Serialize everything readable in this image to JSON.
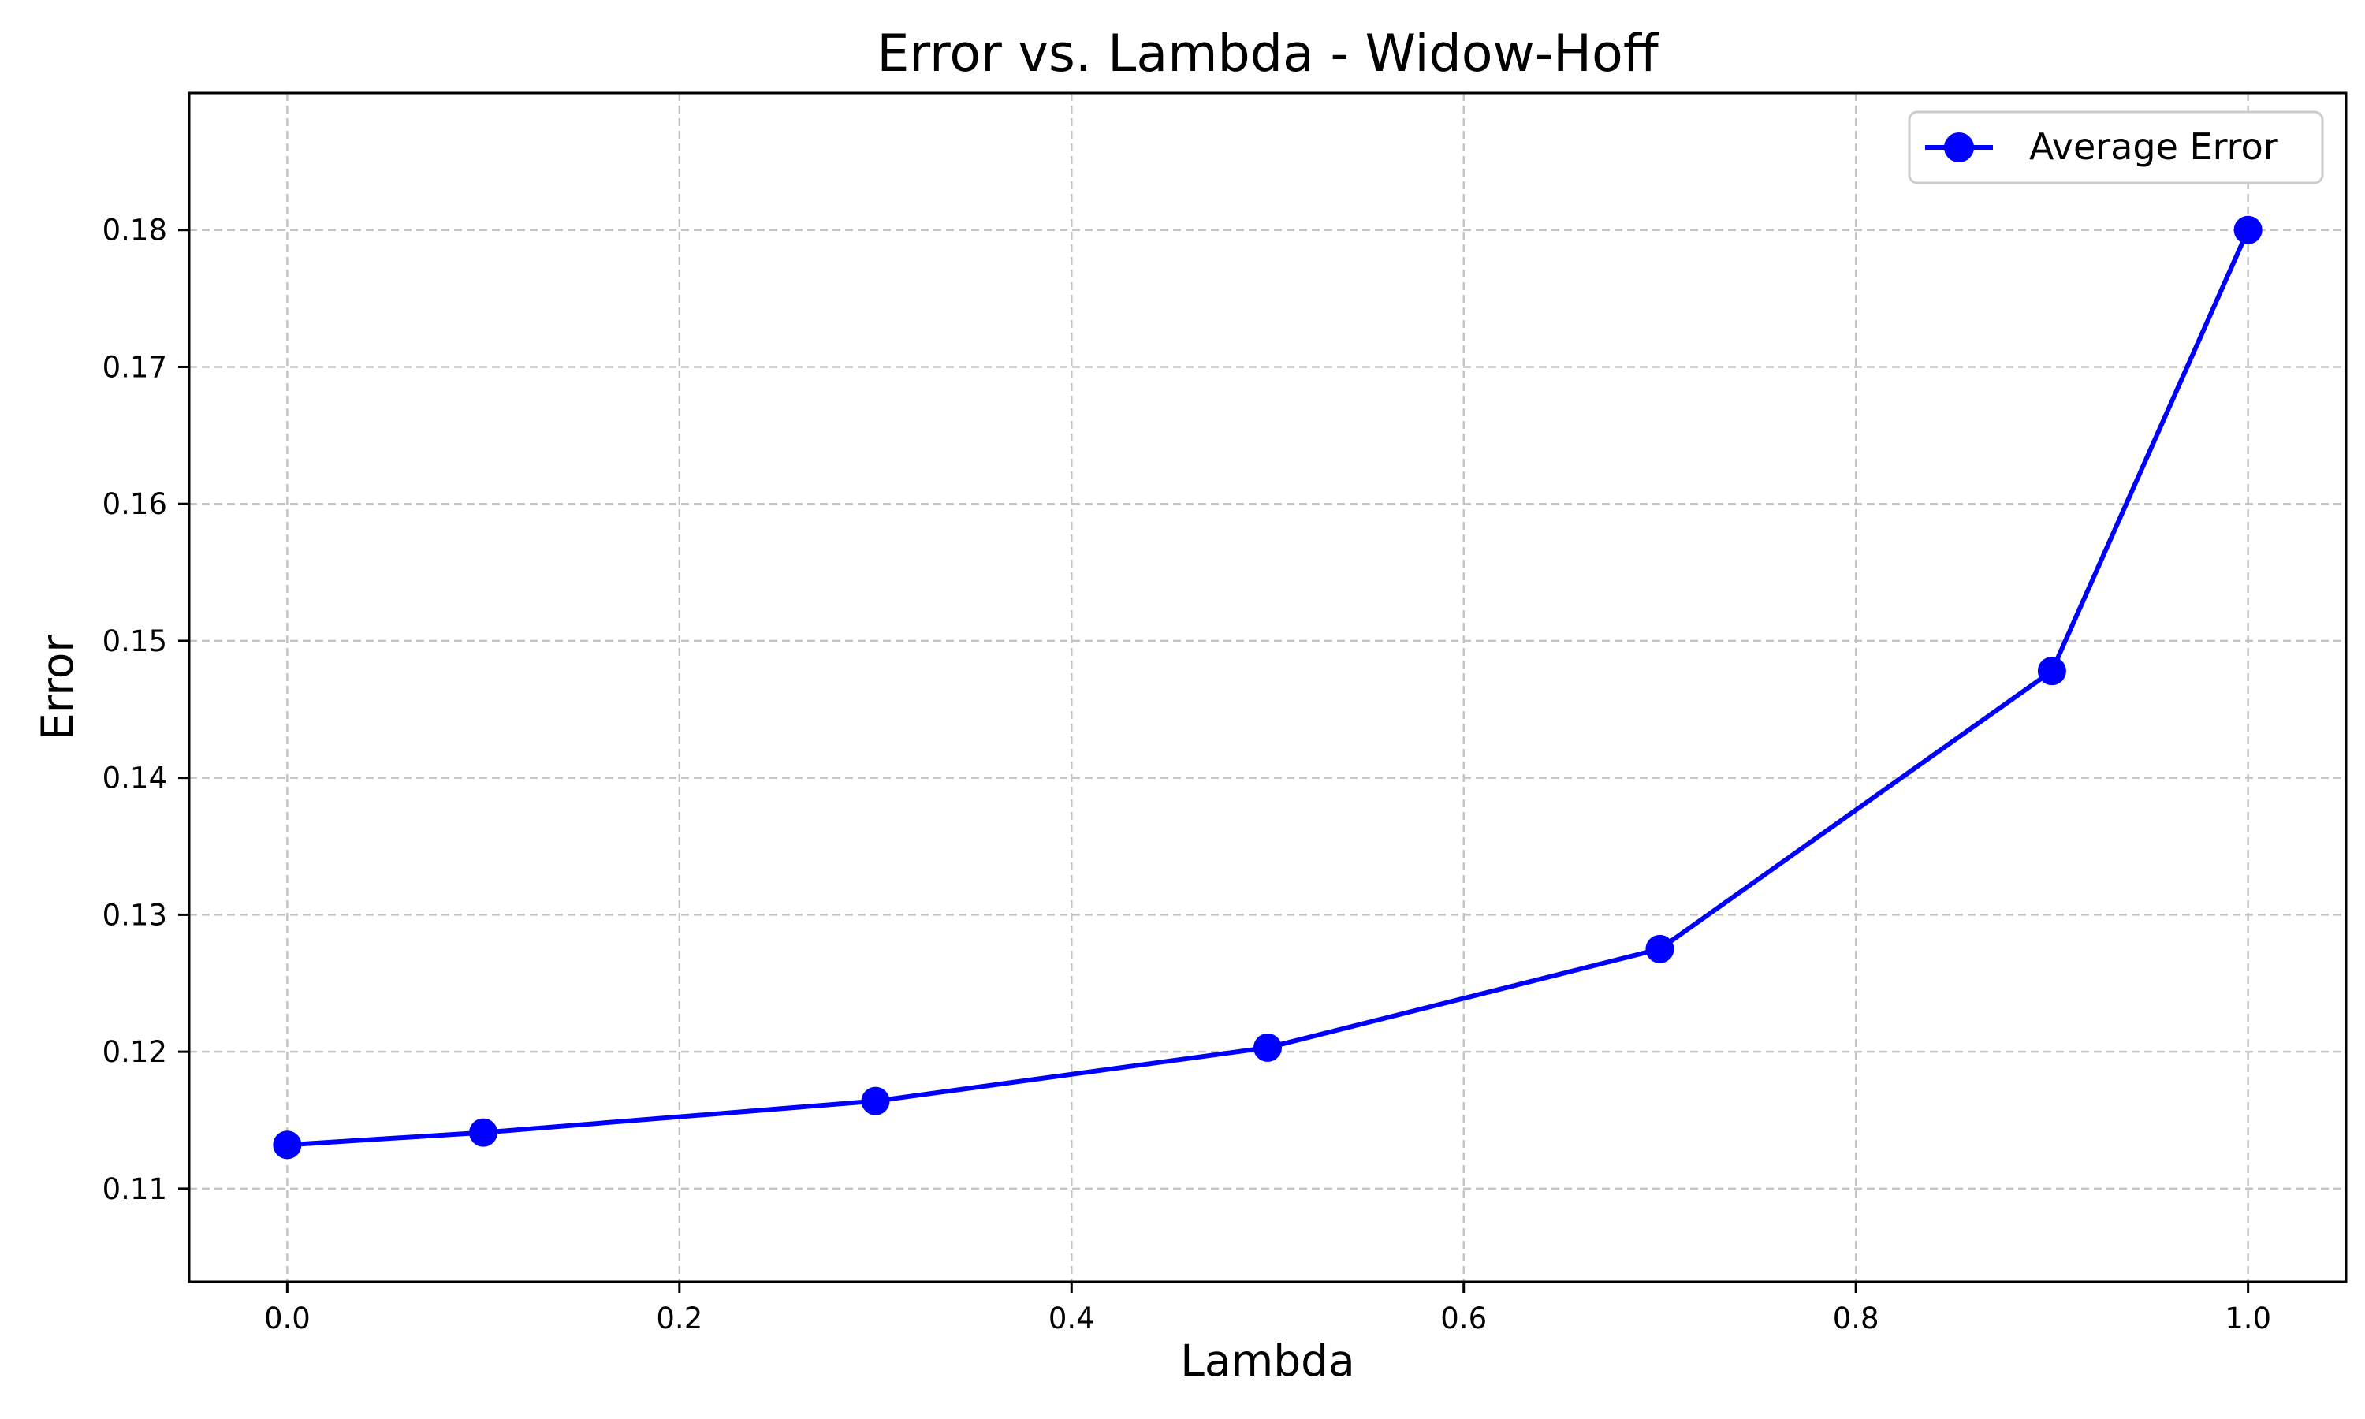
{
  "chart_data": {
    "type": "line",
    "title": "Error vs. Lambda - Widow-Hoff",
    "xlabel": "Lambda",
    "ylabel": "Error",
    "xlim": [
      -0.05,
      1.05
    ],
    "ylim": [
      0.1032,
      0.19
    ],
    "x_ticks": [
      0.0,
      0.2,
      0.4,
      0.6,
      0.8,
      1.0
    ],
    "x_tick_labels": [
      "0.0",
      "0.2",
      "0.4",
      "0.6",
      "0.8",
      "1.0"
    ],
    "y_ticks": [
      0.11,
      0.12,
      0.13,
      0.14,
      0.15,
      0.16,
      0.17,
      0.18
    ],
    "y_tick_labels": [
      "0.11",
      "0.12",
      "0.13",
      "0.14",
      "0.15",
      "0.16",
      "0.17",
      "0.18"
    ],
    "grid": true,
    "grid_style": "dashed",
    "legend_position": "top-right",
    "series": [
      {
        "name": "Average Error",
        "color": "#0000ff",
        "marker": "circle",
        "x": [
          0.0,
          0.1,
          0.3,
          0.5,
          0.7,
          0.9,
          1.0
        ],
        "y": [
          0.1132,
          0.1141,
          0.1164,
          0.1203,
          0.1275,
          0.1478,
          0.18
        ]
      }
    ]
  }
}
